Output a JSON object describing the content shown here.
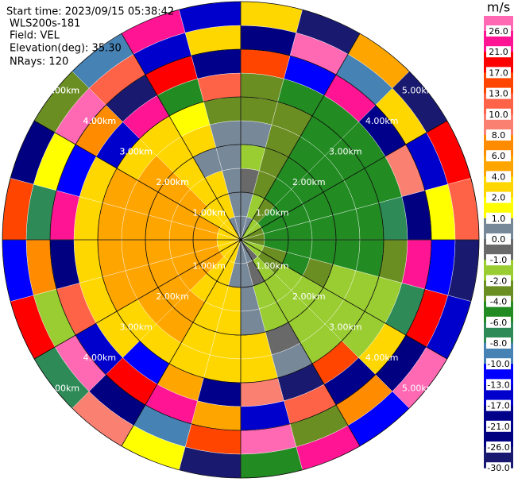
{
  "chart_data": {
    "type": "ppi",
    "annotations": [
      "Start time: 2023/09/15 05:38:42",
      "WLS200s-181",
      "Field: VEL",
      "Elevation(deg): 35.30",
      "NRays: 120"
    ],
    "rlim": [
      0,
      5
    ],
    "rticks": [
      {
        "value": 1,
        "label": "1.00km"
      },
      {
        "value": 2,
        "label": "2.00km"
      },
      {
        "value": 3,
        "label": "3.00km"
      },
      {
        "value": 4,
        "label": "4.00km"
      },
      {
        "value": 5,
        "label": "5.00km"
      }
    ],
    "colorbar": {
      "label": "m/s",
      "ticks": [
        {
          "value": 26,
          "label": "26.0"
        },
        {
          "value": 21,
          "label": "21.0"
        },
        {
          "value": 17,
          "label": "17.0"
        },
        {
          "value": 13,
          "label": "13.0"
        },
        {
          "value": 10,
          "label": "10.0"
        },
        {
          "value": 8,
          "label": "8.0"
        },
        {
          "value": 6,
          "label": "6.0"
        },
        {
          "value": 4,
          "label": "4.0"
        },
        {
          "value": 2,
          "label": "2.0"
        },
        {
          "value": 1,
          "label": "1.0"
        },
        {
          "value": 0,
          "label": "0.0"
        },
        {
          "value": -1,
          "label": "-1.0"
        },
        {
          "value": -2,
          "label": "-2.0"
        },
        {
          "value": -4,
          "label": "-4.0"
        },
        {
          "value": -6,
          "label": "-6.0"
        },
        {
          "value": -8,
          "label": "-8.0"
        },
        {
          "value": -10,
          "label": "-10.0"
        },
        {
          "value": -13,
          "label": "-13.0"
        },
        {
          "value": -17,
          "label": "-17.0"
        },
        {
          "value": -21,
          "label": "-21.0"
        },
        {
          "value": -26,
          "label": "-26.0"
        },
        {
          "value": -30,
          "label": "-30.0"
        }
      ],
      "colors": [
        "#ff69b4",
        "#ff1493",
        "#ff0000",
        "#ff4500",
        "#ff6347",
        "#fa8072",
        "#ff8c00",
        "#ffa500",
        "#ffd700",
        "#ffff00",
        "#778899",
        "#696969",
        "#9acd32",
        "#6b8e23",
        "#228b22",
        "#2e8b57",
        "#4682b4",
        "#0000ff",
        "#0000cd",
        "#00008b",
        "#000080",
        "#191970"
      ]
    },
    "values": [
      [
        0.5,
        0.5,
        -0.5,
        -1.5,
        0.5,
        -3,
        -3,
        14,
        -22,
        3
      ],
      [
        0.5,
        -1.5,
        -3,
        -3,
        -3,
        -3,
        -5,
        -12,
        27,
        -28
      ],
      [
        -1.5,
        -3,
        -5,
        -5,
        -5,
        -5,
        -5,
        22,
        -9,
        5
      ],
      [
        -1.5,
        -5,
        -5,
        -5,
        -5,
        -5,
        -5,
        -18,
        3,
        -27
      ],
      [
        -3,
        -5,
        -5,
        -5,
        -5,
        -5,
        -5,
        9,
        -15,
        18
      ],
      [
        -3,
        -5,
        -5,
        -5,
        -5,
        -5,
        -7,
        -24,
        1.5,
        12
      ],
      [
        -3,
        -5,
        -5,
        -5,
        -5,
        -5,
        -3,
        25,
        -11,
        -29
      ],
      [
        -1.5,
        -3,
        -5,
        -3,
        -1.5,
        -1.5,
        -1.5,
        -7,
        19,
        -16
      ],
      [
        -1.5,
        -3,
        -1.5,
        -1.5,
        -1.5,
        -1.5,
        -1.5,
        3,
        -23,
        26
      ],
      [
        -0.5,
        -1.5,
        -1.5,
        -1.5,
        -1.5,
        -1.5,
        15,
        -19,
        7,
        -12
      ],
      [
        0.5,
        -0.5,
        -1.5,
        -1.5,
        -0.5,
        0.5,
        -28,
        11,
        -3,
        23
      ],
      [
        0.5,
        0.5,
        0.5,
        0.5,
        3,
        3,
        9,
        -14,
        27,
        -5
      ],
      [
        0.5,
        0.5,
        3,
        3,
        3,
        3,
        -20,
        5,
        15,
        -27
      ],
      [
        3,
        3,
        3,
        3,
        3,
        3,
        5,
        23,
        -9,
        1.5
      ],
      [
        3,
        3,
        3,
        5,
        5,
        3,
        -12,
        17,
        -24,
        8
      ],
      [
        3,
        5,
        5,
        5,
        5,
        3,
        3,
        -17,
        28,
        -7
      ],
      [
        3,
        5,
        5,
        5,
        5,
        5,
        3,
        11,
        -2,
        19
      ],
      [
        3,
        5,
        5,
        5,
        5,
        5,
        3,
        -26,
        6,
        -13
      ],
      [
        3,
        5,
        5,
        5,
        5,
        5,
        3,
        24,
        -8,
        14
      ],
      [
        3,
        5,
        5,
        5,
        5,
        5,
        3,
        -11,
        1.5,
        -22
      ],
      [
        3,
        3,
        5,
        5,
        5,
        3,
        -15,
        7,
        27,
        -3
      ],
      [
        3,
        3,
        3,
        3,
        3,
        3,
        22,
        -27,
        12,
        -9
      ],
      [
        0.5,
        3,
        3,
        0.5,
        3,
        1.5,
        -6,
        18,
        -14,
        25
      ],
      [
        0.5,
        0.5,
        0.5,
        0.5,
        0.5,
        -3,
        11,
        -21,
        3,
        -17
      ]
    ]
  }
}
